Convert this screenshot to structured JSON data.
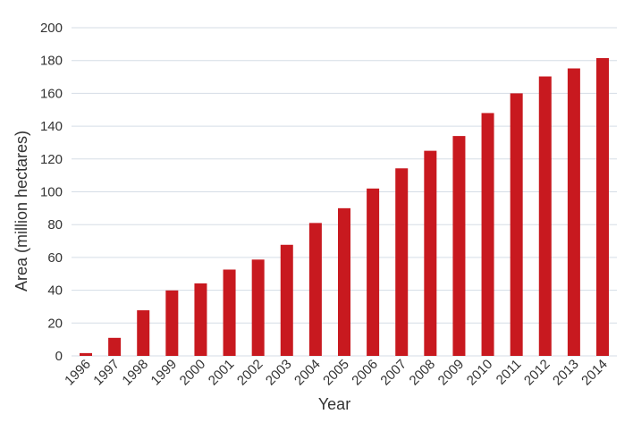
{
  "chart_data": {
    "type": "bar",
    "title": "",
    "xlabel": "Year",
    "ylabel": "Area (million hectares)",
    "ylim": [
      0,
      200
    ],
    "yticks": [
      0,
      20,
      40,
      60,
      80,
      100,
      120,
      140,
      160,
      180,
      200
    ],
    "grid": true,
    "bar_color": "#c8191f",
    "categories": [
      "1996",
      "1997",
      "1998",
      "1999",
      "2000",
      "2001",
      "2002",
      "2003",
      "2004",
      "2005",
      "2006",
      "2007",
      "2008",
      "2009",
      "2010",
      "2011",
      "2012",
      "2013",
      "2014"
    ],
    "values": [
      1.7,
      11,
      27.8,
      39.9,
      44.2,
      52.6,
      58.7,
      67.7,
      81,
      90,
      102,
      114.3,
      125,
      134,
      148,
      160,
      170.3,
      175.2,
      181.5
    ]
  }
}
